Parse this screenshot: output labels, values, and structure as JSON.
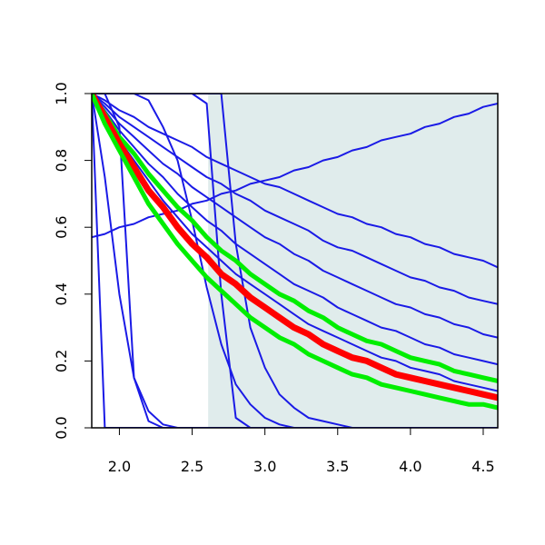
{
  "chart_data": {
    "type": "line",
    "x": [
      1.81,
      1.9,
      2.0,
      2.1,
      2.2,
      2.3,
      2.4,
      2.5,
      2.6,
      2.7,
      2.8,
      2.9,
      3.0,
      3.1,
      3.2,
      3.3,
      3.4,
      3.5,
      3.6,
      3.7,
      3.8,
      3.9,
      4.0,
      4.1,
      4.2,
      4.3,
      4.4,
      4.5,
      4.6
    ],
    "series": [
      {
        "color": "#1a1ae6",
        "values": [
          1,
          0.98,
          0.95,
          0.93,
          0.9,
          0.88,
          0.86,
          0.84,
          0.81,
          0.79,
          0.77,
          0.75,
          0.73,
          0.72,
          0.7,
          0.68,
          0.66,
          0.64,
          0.63,
          0.61,
          0.6,
          0.58,
          0.57,
          0.55,
          0.54,
          0.52,
          0.51,
          0.5,
          0.48
        ]
      },
      {
        "color": "#1a1ae6",
        "values": [
          1,
          0.97,
          0.93,
          0.9,
          0.87,
          0.84,
          0.81,
          0.78,
          0.75,
          0.73,
          0.7,
          0.68,
          0.65,
          0.63,
          0.61,
          0.59,
          0.56,
          0.54,
          0.53,
          0.51,
          0.49,
          0.47,
          0.45,
          0.44,
          0.42,
          0.41,
          0.39,
          0.38,
          0.37
        ]
      },
      {
        "color": "#1a1ae6",
        "values": [
          1,
          0.96,
          0.91,
          0.87,
          0.83,
          0.79,
          0.76,
          0.72,
          0.69,
          0.66,
          0.63,
          0.6,
          0.57,
          0.55,
          0.52,
          0.5,
          0.47,
          0.45,
          0.43,
          0.41,
          0.39,
          0.37,
          0.36,
          0.34,
          0.33,
          0.31,
          0.3,
          0.28,
          0.27
        ]
      },
      {
        "color": "#1a1ae6",
        "values": [
          1,
          0.95,
          0.89,
          0.84,
          0.79,
          0.75,
          0.7,
          0.66,
          0.62,
          0.59,
          0.55,
          0.52,
          0.49,
          0.46,
          0.43,
          0.41,
          0.39,
          0.36,
          0.34,
          0.32,
          0.3,
          0.29,
          0.27,
          0.25,
          0.24,
          0.22,
          0.21,
          0.2,
          0.19
        ]
      },
      {
        "color": "#1a1ae6",
        "values": [
          1,
          0.93,
          0.86,
          0.8,
          0.74,
          0.68,
          0.63,
          0.58,
          0.54,
          0.5,
          0.46,
          0.43,
          0.4,
          0.37,
          0.34,
          0.31,
          0.29,
          0.27,
          0.25,
          0.23,
          0.21,
          0.2,
          0.18,
          0.17,
          0.16,
          0.14,
          0.13,
          0.12,
          0.11
        ]
      },
      {
        "color": "#1a1ae6",
        "values": [
          0.57,
          0.58,
          0.6,
          0.61,
          0.63,
          0.64,
          0.65,
          0.67,
          0.68,
          0.7,
          0.71,
          0.73,
          0.74,
          0.75,
          0.77,
          0.78,
          0.8,
          0.81,
          0.83,
          0.84,
          0.86,
          0.87,
          0.88,
          0.9,
          0.91,
          0.93,
          0.94,
          0.96,
          0.97
        ]
      },
      {
        "color": "#1a1ae6",
        "values": [
          1,
          0,
          0,
          0,
          0,
          0,
          0,
          0,
          0,
          0,
          0,
          0,
          0,
          0,
          0,
          0,
          0,
          0,
          0,
          0,
          0,
          0,
          0,
          0,
          0,
          0,
          0,
          0,
          0
        ]
      },
      {
        "color": "#1a1ae6",
        "values": [
          1,
          1,
          0.9,
          0.15,
          0.02,
          0,
          0,
          0,
          0,
          0,
          0,
          0,
          0,
          0,
          0,
          0,
          0,
          0,
          0,
          0,
          0,
          0,
          0,
          0,
          0,
          0,
          0,
          0,
          0
        ]
      },
      {
        "color": "#1a1ae6",
        "values": [
          1,
          0.75,
          0.4,
          0.15,
          0.05,
          0.01,
          0,
          0,
          0,
          0,
          0,
          0,
          0,
          0,
          0,
          0,
          0,
          0,
          0,
          0,
          0,
          0,
          0,
          0,
          0,
          0,
          0,
          0,
          0
        ]
      },
      {
        "color": "#1a1ae6",
        "values": [
          1,
          1,
          1,
          1,
          1,
          1,
          1,
          1,
          0.97,
          0.4,
          0.03,
          0,
          0,
          0,
          0,
          0,
          0,
          0,
          0,
          0,
          0,
          0,
          0,
          0,
          0,
          0,
          0,
          0,
          0
        ]
      },
      {
        "color": "#1a1ae6",
        "values": [
          1,
          1,
          1,
          1,
          0.98,
          0.9,
          0.8,
          0.62,
          0.42,
          0.25,
          0.13,
          0.07,
          0.03,
          0.01,
          0,
          0,
          0,
          0,
          0,
          0,
          0,
          0,
          0,
          0,
          0,
          0,
          0,
          0,
          0
        ]
      },
      {
        "color": "#1a1ae6",
        "values": [
          1,
          1,
          1,
          1,
          1,
          1,
          1,
          1,
          1,
          1,
          0.55,
          0.3,
          0.18,
          0.1,
          0.06,
          0.03,
          0.02,
          0.01,
          0,
          0,
          0,
          0,
          0,
          0,
          0,
          0,
          0,
          0,
          0
        ]
      },
      {
        "color": "#00ee00",
        "width": 5,
        "values": [
          1,
          0.94,
          0.87,
          0.82,
          0.76,
          0.71,
          0.66,
          0.62,
          0.57,
          0.53,
          0.5,
          0.46,
          0.43,
          0.4,
          0.38,
          0.35,
          0.33,
          0.3,
          0.28,
          0.26,
          0.25,
          0.23,
          0.21,
          0.2,
          0.19,
          0.17,
          0.16,
          0.15,
          0.14
        ]
      },
      {
        "color": "#ff0000",
        "width": 7,
        "values": [
          1,
          0.93,
          0.85,
          0.78,
          0.71,
          0.66,
          0.6,
          0.55,
          0.51,
          0.46,
          0.43,
          0.39,
          0.36,
          0.33,
          0.3,
          0.28,
          0.25,
          0.23,
          0.21,
          0.2,
          0.18,
          0.16,
          0.15,
          0.14,
          0.13,
          0.12,
          0.11,
          0.1,
          0.09
        ]
      },
      {
        "color": "#00ee00",
        "width": 5,
        "values": [
          1,
          0.91,
          0.83,
          0.75,
          0.67,
          0.61,
          0.55,
          0.5,
          0.45,
          0.41,
          0.37,
          0.33,
          0.3,
          0.27,
          0.25,
          0.22,
          0.2,
          0.18,
          0.16,
          0.15,
          0.13,
          0.12,
          0.11,
          0.1,
          0.09,
          0.08,
          0.07,
          0.07,
          0.06
        ]
      }
    ],
    "shaded_region": {
      "xmin": 2.61,
      "xmax": 4.6,
      "color": "#e0ecec"
    },
    "xlim": [
      1.81,
      4.6
    ],
    "ylim": [
      0,
      1
    ],
    "xticks": [
      {
        "value": 2,
        "label": "2.0"
      },
      2.5,
      {
        "value": 3,
        "label": "3.0"
      },
      3.5,
      {
        "value": 4,
        "label": "4.0"
      },
      4.5
    ],
    "yticks": [
      {
        "value": 0,
        "label": "0.0"
      },
      0.2,
      0.4,
      0.6,
      0.8,
      {
        "value": 1,
        "label": "1.0"
      }
    ]
  }
}
